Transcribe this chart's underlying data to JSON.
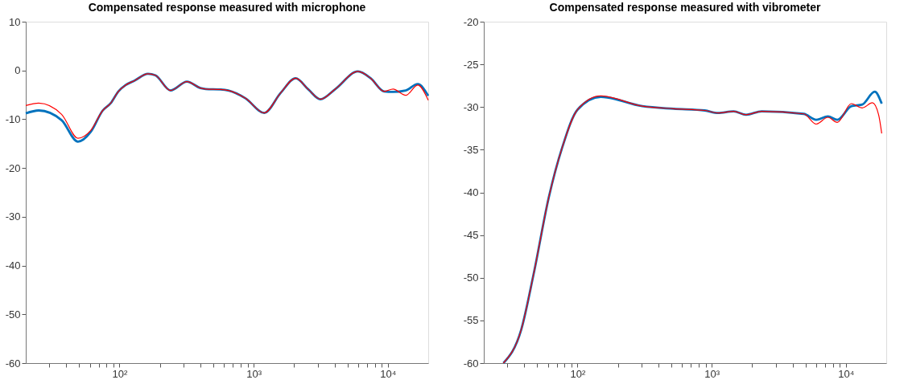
{
  "chart_data": [
    {
      "type": "line",
      "title": "Compensated response measured with microphone",
      "log": "x",
      "grid": false,
      "line_style": "solid",
      "marker": "none",
      "xlim": [
        20,
        20000
      ],
      "ylim": [
        -60,
        10
      ],
      "xticks": [
        {
          "value": 30,
          "label": null
        },
        {
          "value": 40,
          "label": null
        },
        {
          "value": 50,
          "label": null
        },
        {
          "value": 60,
          "label": null
        },
        {
          "value": 70,
          "label": null
        },
        {
          "value": 80,
          "label": null
        },
        {
          "value": 90,
          "label": null
        },
        {
          "value": 100,
          "label": "10²"
        },
        {
          "value": 200,
          "label": null
        },
        {
          "value": 300,
          "label": null
        },
        {
          "value": 400,
          "label": null
        },
        {
          "value": 500,
          "label": null
        },
        {
          "value": 600,
          "label": null
        },
        {
          "value": 700,
          "label": null
        },
        {
          "value": 800,
          "label": null
        },
        {
          "value": 900,
          "label": null
        },
        {
          "value": 1000,
          "label": "10³"
        },
        {
          "value": 2000,
          "label": null
        },
        {
          "value": 3000,
          "label": null
        },
        {
          "value": 4000,
          "label": null
        },
        {
          "value": 5000,
          "label": null
        },
        {
          "value": 6000,
          "label": null
        },
        {
          "value": 7000,
          "label": null
        },
        {
          "value": 8000,
          "label": null
        },
        {
          "value": 9000,
          "label": null
        },
        {
          "value": 10000,
          "label": "10⁴"
        }
      ],
      "yticks": [
        -60,
        -50,
        -40,
        -30,
        -20,
        -10,
        0,
        10
      ],
      "series": [
        {
          "color": "#0072bd",
          "x": [
            20,
            25,
            37,
            49,
            61,
            75,
            86,
            98,
            111,
            129,
            163,
            185,
            240,
            318,
            401,
            439,
            567,
            646,
            868,
            1198,
            1589,
            2055,
            2557,
            3141,
            4064,
            5983,
            7444,
            9376,
            10940,
            13600,
            16700,
            20000
          ],
          "values": [
            -8.8,
            -8.2,
            -10.2,
            -14.6,
            -12.6,
            -8.2,
            -6.7,
            -4.3,
            -3.0,
            -2.1,
            -0.7,
            -1.0,
            -4.1,
            -2.3,
            -3.6,
            -3.8,
            -3.9,
            -4.1,
            -5.7,
            -8.7,
            -4.6,
            -1.6,
            -3.9,
            -5.9,
            -3.8,
            -0.2,
            -1.6,
            -4.3,
            -4.4,
            -4.1,
            -2.8,
            -5.2
          ]
        },
        {
          "color": "#ff0000",
          "x": [
            20,
            25,
            37,
            49,
            61,
            75,
            86,
            98,
            111,
            129,
            163,
            185,
            240,
            318,
            401,
            439,
            567,
            646,
            868,
            1198,
            1589,
            2055,
            2557,
            3141,
            4064,
            5983,
            7444,
            9376,
            10940,
            13600,
            16700,
            20000
          ],
          "values": [
            -7.2,
            -6.7,
            -9.0,
            -13.9,
            -12.3,
            -8.2,
            -6.7,
            -4.3,
            -3.0,
            -2.1,
            -0.7,
            -1.0,
            -4.1,
            -2.3,
            -3.6,
            -3.8,
            -3.9,
            -4.1,
            -5.7,
            -8.7,
            -4.6,
            -1.6,
            -3.9,
            -5.9,
            -3.8,
            -0.2,
            -1.6,
            -4.3,
            -3.8,
            -5.1,
            -3.0,
            -6.1
          ]
        }
      ]
    },
    {
      "type": "line",
      "title": "Compensated response measured with vibrometer",
      "log": "x",
      "grid": false,
      "line_style": "solid",
      "marker": "none",
      "xlim": [
        20,
        20000
      ],
      "ylim": [
        -60,
        -20
      ],
      "xticks": [
        {
          "value": 30,
          "label": null
        },
        {
          "value": 40,
          "label": null
        },
        {
          "value": 50,
          "label": null
        },
        {
          "value": 60,
          "label": null
        },
        {
          "value": 70,
          "label": null
        },
        {
          "value": 80,
          "label": null
        },
        {
          "value": 90,
          "label": null
        },
        {
          "value": 100,
          "label": "10²"
        },
        {
          "value": 200,
          "label": null
        },
        {
          "value": 300,
          "label": null
        },
        {
          "value": 400,
          "label": null
        },
        {
          "value": 500,
          "label": null
        },
        {
          "value": 600,
          "label": null
        },
        {
          "value": 700,
          "label": null
        },
        {
          "value": 800,
          "label": null
        },
        {
          "value": 900,
          "label": null
        },
        {
          "value": 1000,
          "label": "10³"
        },
        {
          "value": 2000,
          "label": null
        },
        {
          "value": 3000,
          "label": null
        },
        {
          "value": 4000,
          "label": null
        },
        {
          "value": 5000,
          "label": null
        },
        {
          "value": 6000,
          "label": null
        },
        {
          "value": 7000,
          "label": null
        },
        {
          "value": 8000,
          "label": null
        },
        {
          "value": 9000,
          "label": null
        },
        {
          "value": 10000,
          "label": "10⁴"
        }
      ],
      "yticks": [
        -60,
        -55,
        -50,
        -45,
        -40,
        -35,
        -30,
        -25,
        -20
      ],
      "series": [
        {
          "color": "#0072bd",
          "x": [
            28,
            38,
            47,
            61,
            77,
            100,
            149,
            304,
            519,
            887,
            1113,
            1456,
            1804,
            2356,
            4853,
            6010,
            7348,
            8630,
            10990,
            13250,
            16410,
            18500
          ],
          "values": [
            -60,
            -56.1,
            -49.6,
            -40.6,
            -34.7,
            -30.3,
            -28.8,
            -29.9,
            -30.2,
            -30.4,
            -30.7,
            -30.5,
            -30.9,
            -30.5,
            -30.8,
            -31.5,
            -31.1,
            -31.5,
            -29.9,
            -29.7,
            -28.2,
            -29.6
          ]
        },
        {
          "color": "#ff0000",
          "x": [
            28,
            38,
            47,
            61,
            77,
            100,
            149,
            304,
            519,
            887,
            1113,
            1456,
            1804,
            2356,
            4853,
            6010,
            7348,
            8630,
            10990,
            13250,
            15770,
            17540,
            18500
          ],
          "values": [
            -60,
            -56.1,
            -49.6,
            -40.6,
            -34.7,
            -30.3,
            -28.7,
            -29.9,
            -30.2,
            -30.4,
            -30.7,
            -30.5,
            -30.9,
            -30.5,
            -30.8,
            -32.0,
            -31.2,
            -31.8,
            -29.6,
            -30.1,
            -29.5,
            -30.9,
            -33.1
          ]
        }
      ]
    }
  ]
}
